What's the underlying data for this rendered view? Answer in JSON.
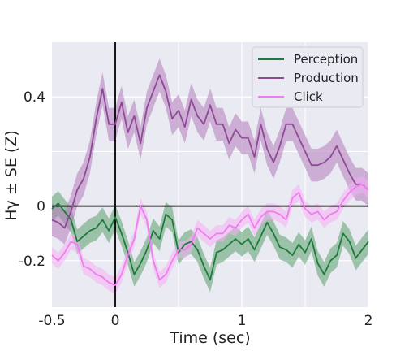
{
  "chart_data": {
    "type": "line",
    "title": "",
    "xlabel": "Time (sec)",
    "ylabel": "Hγ ± SE (Z)",
    "xlim": [
      -0.5,
      2.0
    ],
    "ylim": [
      -0.37,
      0.6
    ],
    "x_ticks": [
      -0.5,
      0,
      1,
      2
    ],
    "x_tick_labels": [
      "-0.5",
      "0",
      "1",
      "2"
    ],
    "x_minor_grid": [
      0.5,
      1.5
    ],
    "y_ticks": [
      -0.2,
      0,
      0.4
    ],
    "y_tick_labels": [
      "-0.2",
      "0",
      "0.4"
    ],
    "y_minor_grid": [
      0.2
    ],
    "grid": true,
    "legend_position": "top-right",
    "reference_lines": {
      "vertical_x": 0,
      "horizontal_y": 0
    },
    "series": [
      {
        "name": "Perception",
        "color": "#1e7a3c",
        "band_color": "#5aa06e",
        "se": 0.045,
        "x": [
          -0.5,
          -0.45,
          -0.4,
          -0.35,
          -0.3,
          -0.25,
          -0.2,
          -0.15,
          -0.1,
          -0.05,
          0,
          0.05,
          0.1,
          0.15,
          0.2,
          0.25,
          0.3,
          0.35,
          0.4,
          0.45,
          0.5,
          0.55,
          0.6,
          0.65,
          0.7,
          0.75,
          0.8,
          0.85,
          0.9,
          0.95,
          1.0,
          1.05,
          1.1,
          1.15,
          1.2,
          1.25,
          1.3,
          1.35,
          1.4,
          1.45,
          1.5,
          1.55,
          1.6,
          1.65,
          1.7,
          1.75,
          1.8,
          1.85,
          1.9,
          1.95,
          2.0
        ],
        "values": [
          -0.01,
          0.01,
          -0.02,
          -0.05,
          -0.13,
          -0.11,
          -0.09,
          -0.08,
          -0.05,
          -0.09,
          -0.04,
          -0.1,
          -0.17,
          -0.25,
          -0.21,
          -0.16,
          -0.09,
          -0.12,
          -0.03,
          -0.05,
          -0.17,
          -0.14,
          -0.13,
          -0.16,
          -0.22,
          -0.27,
          -0.17,
          -0.16,
          -0.14,
          -0.12,
          -0.14,
          -0.12,
          -0.16,
          -0.11,
          -0.06,
          -0.1,
          -0.15,
          -0.16,
          -0.18,
          -0.14,
          -0.17,
          -0.12,
          -0.21,
          -0.25,
          -0.2,
          -0.18,
          -0.1,
          -0.13,
          -0.19,
          -0.16,
          -0.13
        ]
      },
      {
        "name": "Production",
        "color": "#8e4a96",
        "band_color": "#b27ab9",
        "se": 0.06,
        "x": [
          -0.5,
          -0.45,
          -0.4,
          -0.35,
          -0.3,
          -0.25,
          -0.2,
          -0.15,
          -0.1,
          -0.05,
          0,
          0.05,
          0.1,
          0.15,
          0.2,
          0.25,
          0.3,
          0.35,
          0.4,
          0.45,
          0.5,
          0.55,
          0.6,
          0.65,
          0.7,
          0.75,
          0.8,
          0.85,
          0.9,
          0.95,
          1.0,
          1.05,
          1.1,
          1.15,
          1.2,
          1.25,
          1.3,
          1.35,
          1.4,
          1.45,
          1.5,
          1.55,
          1.6,
          1.65,
          1.7,
          1.75,
          1.8,
          1.85,
          1.9,
          1.95,
          2.0
        ],
        "values": [
          -0.05,
          -0.06,
          -0.08,
          -0.02,
          0.06,
          0.1,
          0.18,
          0.32,
          0.43,
          0.3,
          0.3,
          0.38,
          0.27,
          0.33,
          0.23,
          0.36,
          0.42,
          0.48,
          0.42,
          0.32,
          0.35,
          0.29,
          0.39,
          0.33,
          0.3,
          0.37,
          0.3,
          0.3,
          0.23,
          0.28,
          0.25,
          0.25,
          0.18,
          0.3,
          0.21,
          0.16,
          0.22,
          0.3,
          0.3,
          0.25,
          0.2,
          0.15,
          0.15,
          0.16,
          0.18,
          0.22,
          0.17,
          0.12,
          0.08,
          0.08,
          0.06
        ]
      },
      {
        "name": "Click",
        "color": "#f07cf0",
        "band_color": "#f5aef5",
        "se": 0.03,
        "x": [
          -0.5,
          -0.45,
          -0.4,
          -0.35,
          -0.3,
          -0.25,
          -0.2,
          -0.15,
          -0.1,
          -0.05,
          0,
          0.05,
          0.1,
          0.15,
          0.2,
          0.25,
          0.3,
          0.35,
          0.4,
          0.45,
          0.5,
          0.55,
          0.6,
          0.65,
          0.7,
          0.75,
          0.8,
          0.85,
          0.9,
          0.95,
          1.0,
          1.05,
          1.1,
          1.15,
          1.2,
          1.25,
          1.3,
          1.35,
          1.4,
          1.45,
          1.5,
          1.55,
          1.6,
          1.65,
          1.7,
          1.75,
          1.8,
          1.85,
          1.9,
          1.95,
          2.0
        ],
        "values": [
          -0.18,
          -0.2,
          -0.17,
          -0.13,
          -0.14,
          -0.22,
          -0.23,
          -0.25,
          -0.26,
          -0.28,
          -0.29,
          -0.25,
          -0.18,
          -0.12,
          0.0,
          -0.05,
          -0.2,
          -0.27,
          -0.25,
          -0.2,
          -0.16,
          -0.16,
          -0.14,
          -0.08,
          -0.1,
          -0.12,
          -0.1,
          -0.1,
          -0.07,
          -0.08,
          -0.05,
          -0.03,
          -0.08,
          -0.04,
          -0.02,
          -0.02,
          -0.03,
          -0.05,
          0.03,
          0.05,
          -0.01,
          -0.03,
          -0.02,
          -0.05,
          -0.03,
          -0.02,
          0.02,
          0.05,
          0.07,
          0.08,
          0.06
        ]
      }
    ]
  }
}
